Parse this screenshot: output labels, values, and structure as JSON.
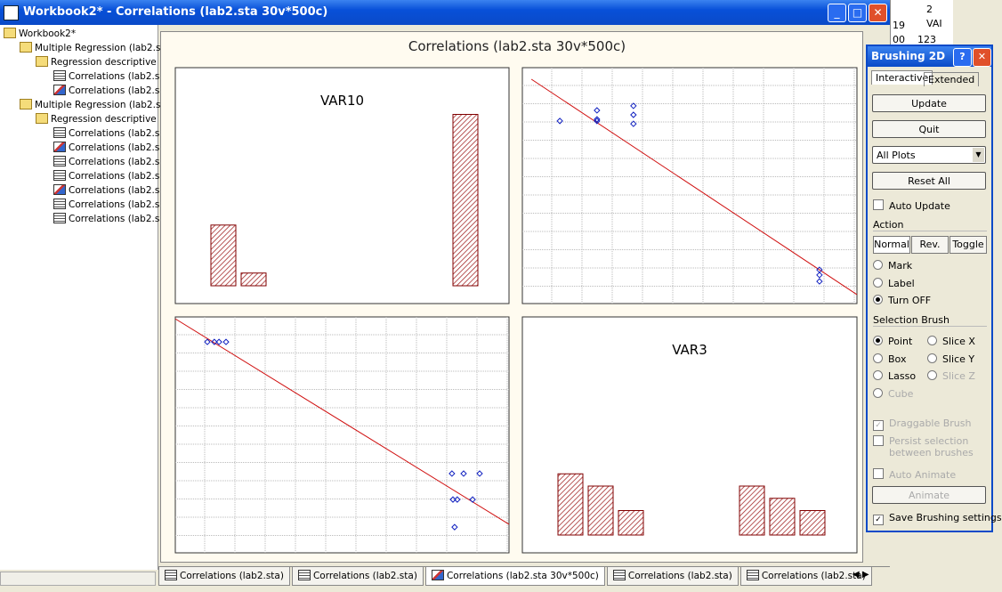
{
  "window": {
    "title": "Workbook2* - Correlations (lab2.sta 30v*500c)",
    "behind_cells": [
      "19",
      "2",
      "VAI",
      "00",
      "123"
    ]
  },
  "tree": {
    "root": "Workbook2*",
    "groups": [
      {
        "label": "Multiple Regression (lab2.st",
        "children": [
          {
            "label": "Regression descriptive :",
            "items": [
              {
                "label": "Correlations (lab2.s",
                "kind": "sheet"
              },
              {
                "label": "Correlations (lab2.s",
                "kind": "graph"
              }
            ]
          }
        ]
      },
      {
        "label": "Multiple Regression (lab2.st",
        "children": [
          {
            "label": "Regression descriptive :",
            "items": [
              {
                "label": "Correlations (lab2.s",
                "kind": "sheet"
              },
              {
                "label": "Correlations (lab2.s",
                "kind": "graph"
              },
              {
                "label": "Correlations (lab2.s",
                "kind": "sheet"
              },
              {
                "label": "Correlations (lab2.s",
                "kind": "sheet"
              },
              {
                "label": "Correlations (lab2.s",
                "kind": "graph"
              },
              {
                "label": "Correlations (lab2.s",
                "kind": "sheet"
              },
              {
                "label": "Correlations (lab2.s",
                "kind": "sheet"
              }
            ]
          }
        ]
      }
    ]
  },
  "workspace": {
    "title": "Correlations (lab2.sta 30v*500c)",
    "panels": [
      {
        "type": "histogram",
        "title": "VAR10",
        "values": [
          124,
          26,
          0,
          0,
          0,
          0,
          0,
          0,
          350
        ]
      },
      {
        "type": "scatter",
        "xlim": [
          0,
          100
        ],
        "ylim": [
          0,
          100
        ],
        "x": [
          11.2,
          22.3,
          22.3,
          22.3,
          33.2,
          33.2,
          33.2,
          88.8,
          88.8,
          88.8
        ],
        "y": [
          77.4,
          78.1,
          81.9,
          77.4,
          83.8,
          80,
          76.2,
          14.3,
          12.1,
          9.4
        ],
        "fit": {
          "x": [
            2.7,
            100
          ],
          "y": [
            95.1,
            3.8
          ]
        }
      },
      {
        "type": "scatter",
        "xlim": [
          0,
          100
        ],
        "ylim": [
          0,
          100
        ],
        "x": [
          9.6,
          11.7,
          13.1,
          15.2,
          82.9,
          86.4,
          91.2,
          83.2,
          84.5,
          89.1,
          83.7
        ],
        "y": [
          89.4,
          89.4,
          89.4,
          89.4,
          33.6,
          33.6,
          33.6,
          22.6,
          22.6,
          22.6,
          10.9
        ],
        "fit": {
          "x": [
            0,
            100
          ],
          "y": [
            99.2,
            12.1
          ]
        }
      },
      {
        "type": "histogram",
        "title": "VAR3",
        "values": [
          125,
          100,
          50,
          0,
          0,
          0,
          100,
          75,
          50
        ]
      }
    ]
  },
  "tabs": [
    {
      "label": "Correlations (lab2.sta)",
      "kind": "sheet"
    },
    {
      "label": "Correlations (lab2.sta)",
      "kind": "sheet"
    },
    {
      "label": "Correlations (lab2.sta 30v*500c)",
      "kind": "graph",
      "active": true
    },
    {
      "label": "Correlations (lab2.sta)",
      "kind": "sheet"
    },
    {
      "label": "Correlations (lab2.sta)",
      "kind": "sheet"
    }
  ],
  "dialog": {
    "title": "Brushing 2D",
    "help": "?",
    "tabs": [
      "Interactive",
      "Extended"
    ],
    "update": "Update",
    "quit": "Quit",
    "scope": "All Plots",
    "reset": "Reset All",
    "auto_update": "Auto Update",
    "action": {
      "label": "Action",
      "modes": [
        "Normal",
        "Rev.",
        "Toggle"
      ],
      "options": [
        "Mark",
        "Label",
        "Turn OFF"
      ]
    },
    "brush": {
      "label": "Selection Brush",
      "options": [
        "Point",
        "Slice X",
        "Box",
        "Slice Y",
        "Lasso",
        "Slice Z",
        "Cube"
      ]
    },
    "draggable": "Draggable Brush",
    "persist": "Persist selection between brushes",
    "auto_animate": "Auto Animate",
    "animate": "Animate",
    "save": "Save Brushing settings"
  }
}
